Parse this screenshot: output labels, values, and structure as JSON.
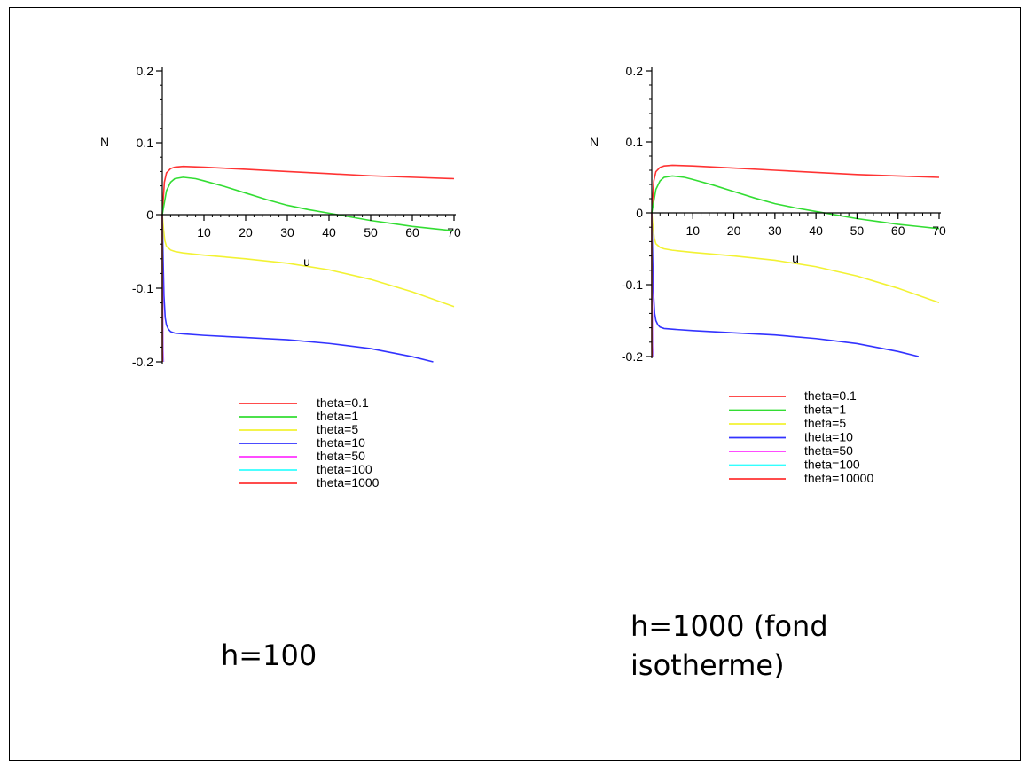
{
  "captions": {
    "left": "h=100",
    "right_line1": "h=1000 (fond",
    "right_line2": "isotherme)"
  },
  "chart_data": [
    {
      "type": "line",
      "title": "",
      "xlabel": "u",
      "ylabel": "N",
      "xlim": [
        0,
        70
      ],
      "ylim": [
        -0.2,
        0.2
      ],
      "x_ticks": [
        10,
        20,
        30,
        40,
        50,
        60,
        70
      ],
      "y_ticks": [
        0.2,
        0.1,
        0,
        -0.1,
        -0.2
      ],
      "x_tick_labels": [
        "10",
        "20",
        "30",
        "40",
        "50",
        "60",
        "70"
      ],
      "y_tick_labels": [
        "0.2",
        "0.1",
        "0",
        "-0.1",
        "-0.2"
      ],
      "legend_position": "bottom",
      "series": [
        {
          "name": "theta=0.1",
          "color": "#ff3333",
          "x": [
            0,
            0.5,
            1,
            2,
            3,
            5,
            10,
            20,
            30,
            40,
            50,
            60,
            70
          ],
          "y": [
            0,
            0.045,
            0.058,
            0.064,
            0.066,
            0.067,
            0.066,
            0.063,
            0.06,
            0.057,
            0.054,
            0.052,
            0.05
          ]
        },
        {
          "name": "theta=1",
          "color": "#33dd33",
          "x": [
            0,
            1,
            2,
            3,
            5,
            8,
            10,
            15,
            20,
            25,
            30,
            35,
            40,
            45,
            50,
            55,
            60,
            65,
            70
          ],
          "y": [
            0,
            0.033,
            0.045,
            0.05,
            0.052,
            0.05,
            0.047,
            0.039,
            0.03,
            0.021,
            0.013,
            0.007,
            0.002,
            -0.003,
            -0.008,
            -0.012,
            -0.016,
            -0.019,
            -0.022
          ]
        },
        {
          "name": "theta=5",
          "color": "#f2f233",
          "x": [
            0,
            0.3,
            0.6,
            1,
            2,
            3,
            5,
            10,
            20,
            30,
            40,
            50,
            60,
            70
          ],
          "y": [
            0,
            -0.02,
            -0.035,
            -0.043,
            -0.048,
            -0.05,
            -0.052,
            -0.055,
            -0.06,
            -0.066,
            -0.075,
            -0.088,
            -0.105,
            -0.125
          ]
        },
        {
          "name": "theta=10",
          "color": "#3333ff",
          "x": [
            0,
            0.2,
            0.4,
            0.7,
            1,
            1.5,
            2,
            3,
            5,
            10,
            20,
            30,
            40,
            50,
            60,
            65
          ],
          "y": [
            0,
            -0.06,
            -0.11,
            -0.14,
            -0.15,
            -0.156,
            -0.159,
            -0.161,
            -0.162,
            -0.164,
            -0.167,
            -0.17,
            -0.175,
            -0.182,
            -0.193,
            -0.2
          ]
        },
        {
          "name": "theta=50",
          "color": "#ff33ff",
          "x": [
            0,
            0.1,
            0.2,
            0.3
          ],
          "y": [
            0,
            -0.12,
            -0.185,
            -0.2
          ]
        },
        {
          "name": "theta=100",
          "color": "#33ffff",
          "x": [
            0,
            0.05,
            0.1,
            0.15
          ],
          "y": [
            0,
            -0.13,
            -0.19,
            -0.2
          ]
        },
        {
          "name": "theta=1000",
          "color": "#ff3333",
          "x": [
            0,
            0.02,
            0.05
          ],
          "y": [
            0,
            -0.18,
            -0.2
          ]
        }
      ]
    },
    {
      "type": "line",
      "title": "",
      "xlabel": "u",
      "ylabel": "N",
      "xlim": [
        0,
        70
      ],
      "ylim": [
        -0.2,
        0.2
      ],
      "x_ticks": [
        10,
        20,
        30,
        40,
        50,
        60,
        70
      ],
      "y_ticks": [
        0.2,
        0.1,
        0,
        -0.1,
        -0.2
      ],
      "x_tick_labels": [
        "10",
        "20",
        "30",
        "40",
        "50",
        "60",
        "70"
      ],
      "y_tick_labels": [
        "0.2",
        "0.1",
        "0",
        "-0.1",
        "-0.2"
      ],
      "legend_position": "bottom",
      "series": [
        {
          "name": "theta=0.1",
          "color": "#ff3333",
          "x": [
            0,
            0.5,
            1,
            2,
            3,
            5,
            10,
            20,
            30,
            40,
            50,
            60,
            70
          ],
          "y": [
            0,
            0.045,
            0.058,
            0.064,
            0.066,
            0.067,
            0.066,
            0.063,
            0.06,
            0.057,
            0.054,
            0.052,
            0.05
          ]
        },
        {
          "name": "theta=1",
          "color": "#33dd33",
          "x": [
            0,
            1,
            2,
            3,
            5,
            8,
            10,
            15,
            20,
            25,
            30,
            35,
            40,
            45,
            50,
            55,
            60,
            65,
            70
          ],
          "y": [
            0,
            0.033,
            0.045,
            0.05,
            0.052,
            0.05,
            0.047,
            0.039,
            0.03,
            0.021,
            0.013,
            0.007,
            0.002,
            -0.003,
            -0.008,
            -0.012,
            -0.016,
            -0.019,
            -0.022
          ]
        },
        {
          "name": "theta=5",
          "color": "#f2f233",
          "x": [
            0,
            0.3,
            0.6,
            1,
            2,
            3,
            5,
            10,
            20,
            30,
            40,
            50,
            60,
            70
          ],
          "y": [
            0,
            -0.02,
            -0.035,
            -0.043,
            -0.048,
            -0.05,
            -0.052,
            -0.055,
            -0.06,
            -0.066,
            -0.075,
            -0.088,
            -0.105,
            -0.125
          ]
        },
        {
          "name": "theta=10",
          "color": "#3333ff",
          "x": [
            0,
            0.2,
            0.4,
            0.7,
            1,
            1.5,
            2,
            3,
            5,
            10,
            20,
            30,
            40,
            50,
            60,
            65
          ],
          "y": [
            0,
            -0.06,
            -0.11,
            -0.14,
            -0.15,
            -0.156,
            -0.159,
            -0.161,
            -0.162,
            -0.164,
            -0.167,
            -0.17,
            -0.175,
            -0.182,
            -0.193,
            -0.2
          ]
        },
        {
          "name": "theta=50",
          "color": "#ff33ff",
          "x": [
            0,
            0.1,
            0.2,
            0.3
          ],
          "y": [
            0,
            -0.12,
            -0.185,
            -0.2
          ]
        },
        {
          "name": "theta=100",
          "color": "#33ffff",
          "x": [
            0,
            0.05,
            0.1,
            0.15
          ],
          "y": [
            0,
            -0.13,
            -0.19,
            -0.2
          ]
        },
        {
          "name": "theta=10000",
          "color": "#ff3333",
          "x": [
            0,
            0.02,
            0.05
          ],
          "y": [
            0,
            -0.18,
            -0.2
          ]
        }
      ]
    }
  ]
}
